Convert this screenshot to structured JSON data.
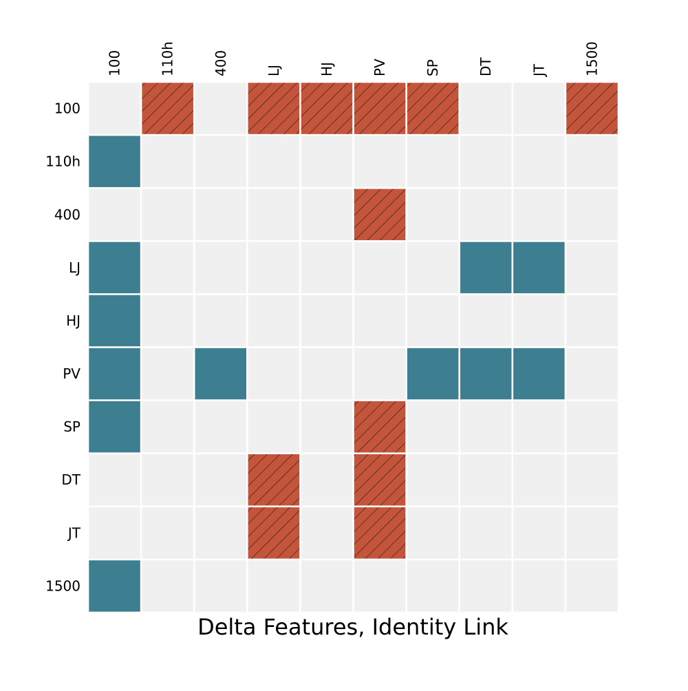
{
  "chart_data": {
    "type": "heatmap",
    "title": "",
    "xlabel": "Delta Features, Identity Link",
    "ylabel": "",
    "x_categories": [
      "100",
      "110h",
      "400",
      "LJ",
      "HJ",
      "PV",
      "SP",
      "DT",
      "JT",
      "1500"
    ],
    "y_categories": [
      "100",
      "110h",
      "400",
      "LJ",
      "HJ",
      "PV",
      "SP",
      "DT",
      "JT",
      "1500"
    ],
    "x_tick_position": "top",
    "legend": "none",
    "grid": false,
    "values": [
      [
        0,
        -1,
        0,
        -1,
        -1,
        -1,
        -1,
        0,
        0,
        -1
      ],
      [
        1,
        0,
        0,
        0,
        0,
        0,
        0,
        0,
        0,
        0
      ],
      [
        0,
        0,
        0,
        0,
        0,
        -1,
        0,
        0,
        0,
        0
      ],
      [
        1,
        0,
        0,
        0,
        0,
        0,
        0,
        1,
        1,
        0
      ],
      [
        1,
        0,
        0,
        0,
        0,
        0,
        0,
        0,
        0,
        0
      ],
      [
        1,
        0,
        1,
        0,
        0,
        0,
        1,
        1,
        1,
        0
      ],
      [
        1,
        0,
        0,
        0,
        0,
        -1,
        0,
        0,
        0,
        0
      ],
      [
        0,
        0,
        0,
        -1,
        0,
        -1,
        0,
        0,
        0,
        0
      ],
      [
        0,
        0,
        0,
        -1,
        0,
        -1,
        0,
        0,
        0,
        0
      ],
      [
        1,
        0,
        0,
        0,
        0,
        0,
        0,
        0,
        0,
        0
      ]
    ],
    "value_encoding": {
      "1": "teal solid cell",
      "-1": "red hatched cell",
      "0": "empty light gray cell"
    },
    "colors": {
      "positive": "#3d7f91",
      "negative": "#c4553b",
      "empty": "#f0f0f0",
      "hatch": "#1a1a1a",
      "gridline": "#ffffff"
    }
  }
}
